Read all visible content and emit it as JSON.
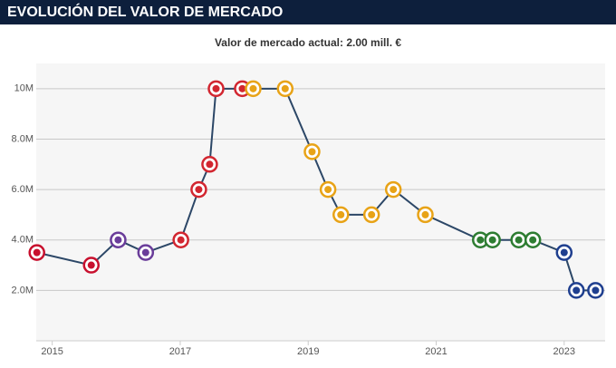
{
  "chart_data": {
    "type": "line",
    "title": "EVOLUCIÓN DEL VALOR DE MERCADO",
    "subtitle": "Valor de mercado actual: 2.00 mill. €",
    "x": [
      2014.76,
      2015.61,
      2016.03,
      2016.46,
      2017.01,
      2017.29,
      2017.46,
      2017.56,
      2017.97,
      2018.14,
      2018.64,
      2019.06,
      2019.31,
      2019.51,
      2019.99,
      2020.33,
      2020.83,
      2021.69,
      2021.88,
      2022.29,
      2022.51,
      2023.0,
      2023.19,
      2023.49
    ],
    "values": [
      3.5,
      3.0,
      4.0,
      3.5,
      4.0,
      6.0,
      7.0,
      10,
      10,
      10,
      10,
      7.5,
      6.0,
      5.0,
      5.0,
      6.0,
      5.0,
      4.0,
      4.0,
      4.0,
      4.0,
      3.5,
      2.0,
      2.0
    ],
    "color": "#2c4767",
    "point_colors": [
      "#c8102e",
      "#c8102e",
      "#6a3d9a",
      "#6a3d9a",
      "#d22630",
      "#d22630",
      "#d22630",
      "#d22630",
      "#d22630",
      "#e8a317",
      "#e8a317",
      "#e8a317",
      "#e8a317",
      "#e8a317",
      "#e8a317",
      "#e8a317",
      "#e8a317",
      "#2e7d32",
      "#2e7d32",
      "#2e7d32",
      "#2e7d32",
      "#1f3f8f",
      "#1f3f8f",
      "#1f3f8f"
    ],
    "xlim": [
      2014.75,
      2023.64
    ],
    "xticks": [
      2015,
      2017,
      2019,
      2021,
      2023
    ],
    "ylim": [
      0,
      11
    ],
    "yticks": [
      {
        "value": 2,
        "label": "2.0M"
      },
      {
        "value": 4,
        "label": "4.0M"
      },
      {
        "value": 6,
        "label": "6.0M"
      },
      {
        "value": 8,
        "label": "8.0M"
      },
      {
        "value": 10,
        "label": "10M"
      }
    ],
    "grid": true
  }
}
